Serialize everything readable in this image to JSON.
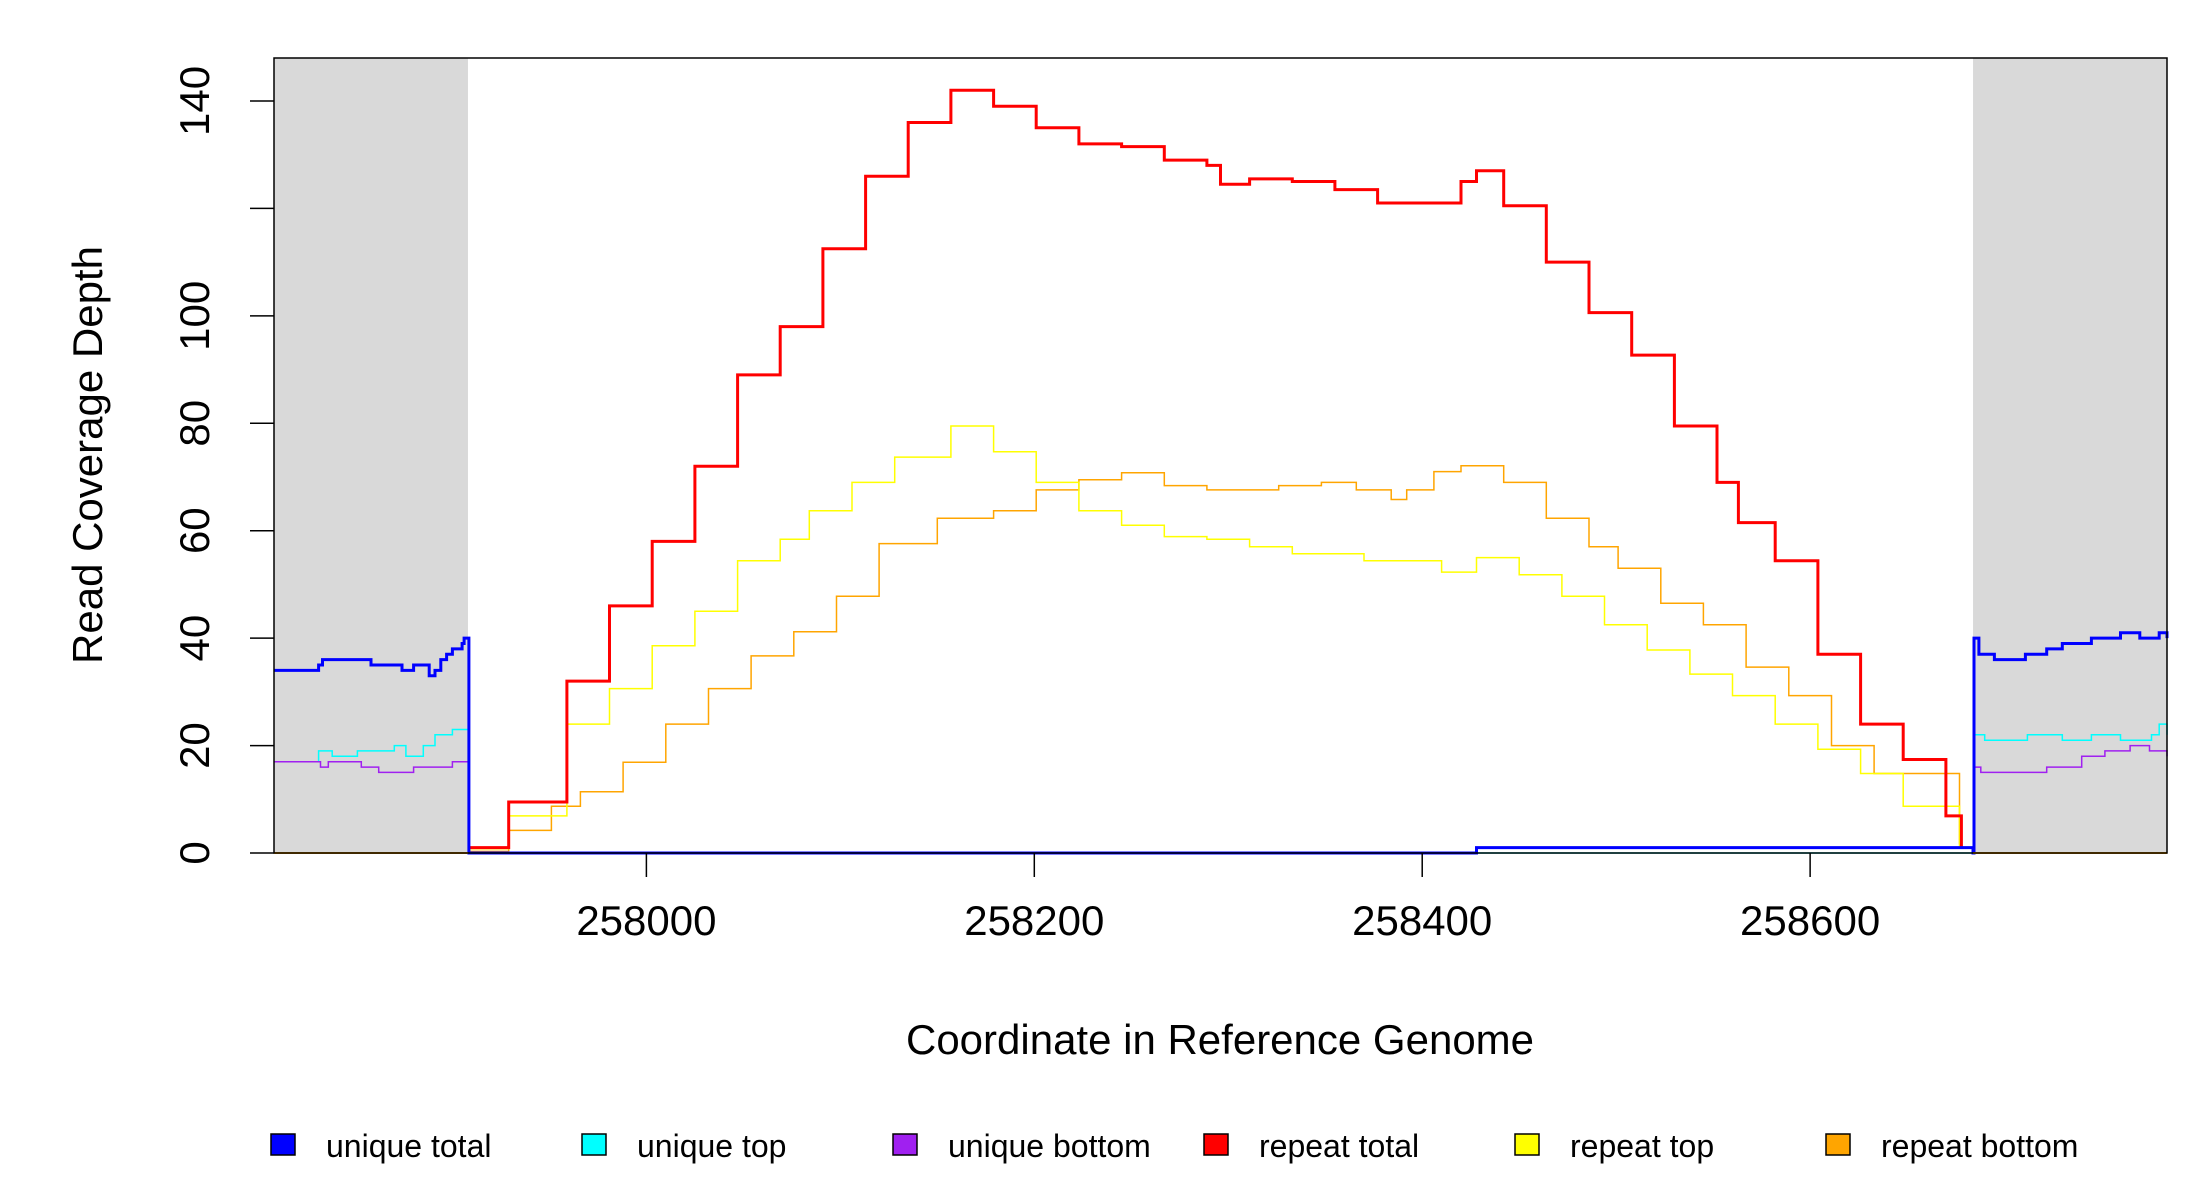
{
  "chart_data": {
    "type": "line",
    "title": "",
    "xlabel": "Coordinate in Reference Genome",
    "ylabel": "Read Coverage Depth",
    "xlim": [
      257808,
      258784
    ],
    "ylim": [
      0,
      148
    ],
    "x_ticks": [
      258000,
      258200,
      258400,
      258600
    ],
    "x_tick_labels": [
      "258000",
      "258200",
      "258400",
      "258600"
    ],
    "y_ticks": [
      0,
      20,
      40,
      60,
      80,
      100,
      120,
      140
    ],
    "y_tick_labels": [
      "0",
      "20",
      "40",
      "60",
      "80",
      "100",
      "",
      "140"
    ],
    "grid": false,
    "legend_placement": "bottom",
    "shaded_regions": [
      {
        "x": [
          257808,
          257908
        ],
        "color": "#d9d9d9"
      },
      {
        "x": [
          258684,
          258784
        ],
        "color": "#d9d9d9"
      }
    ],
    "series": [
      {
        "name": "unique total",
        "color": "#0000ff",
        "width": 3,
        "x": [
          257808,
          257831,
          257833,
          257851,
          257858,
          257862,
          257874,
          257880,
          257888,
          257891,
          257894,
          257897,
          257900,
          257902,
          257905,
          257906,
          257908,
          257908.5,
          258428,
          258678,
          258684,
          258684.5,
          258687,
          258695,
          258711,
          258722,
          258730,
          258745,
          258760,
          258770,
          258780,
          258784
        ],
        "y": [
          34,
          35,
          36,
          36,
          35,
          35,
          34,
          35,
          33,
          34,
          36,
          37,
          38,
          38,
          39,
          40,
          40,
          0,
          1,
          1,
          0,
          40,
          37,
          36,
          37,
          38,
          39,
          40,
          41,
          40,
          41,
          40
        ]
      },
      {
        "name": "unique top",
        "color": "#00ffff",
        "width": 1.5,
        "x": [
          257808,
          257831,
          257838,
          257851,
          257870,
          257876,
          257885,
          257891,
          257900,
          257908,
          257908.5,
          258678,
          258684,
          258684.5,
          258690,
          258712,
          258730,
          258745,
          258760,
          258776,
          258780,
          258784
        ],
        "y": [
          17,
          19,
          18,
          19,
          20,
          18,
          20,
          22,
          23,
          23,
          0,
          0,
          0,
          22,
          21,
          22,
          21,
          22,
          21,
          22,
          24,
          22
        ]
      },
      {
        "name": "unique bottom",
        "color": "#a020f0",
        "width": 1.5,
        "x": [
          257808,
          257832,
          257836,
          257853,
          257862,
          257880,
          257900,
          257908,
          257908.5,
          258428,
          258678,
          258684,
          258684.5,
          258688,
          258700,
          258722,
          258740,
          258752,
          258765,
          258775,
          258784
        ],
        "y": [
          17,
          16,
          17,
          16,
          15,
          16,
          17,
          17,
          0,
          1,
          1,
          0,
          16,
          15,
          15,
          16,
          18,
          19,
          20,
          19,
          18
        ]
      },
      {
        "name": "repeat total",
        "color": "#ff0000",
        "width": 3,
        "x": [
          257908,
          257929,
          257959,
          257981,
          258003,
          258025,
          258047,
          258069,
          258091,
          258113,
          258135,
          258157,
          258179,
          258201,
          258223,
          258245,
          258267,
          258289,
          258296,
          258311,
          258333,
          258355,
          258377,
          258406,
          258420,
          258428,
          258442,
          258464,
          258486,
          258508,
          258530,
          258552,
          258563,
          258582,
          258604,
          258626,
          258648,
          258670,
          258678
        ],
        "y": [
          1,
          9.5,
          32,
          46,
          58,
          72,
          89,
          98,
          112.5,
          126,
          136,
          142,
          139,
          135,
          132,
          131.5,
          129,
          128,
          124.5,
          125.5,
          125,
          123.5,
          121,
          121,
          125,
          127,
          120.5,
          110,
          100.6,
          92.7,
          79.5,
          69,
          61.5,
          54.4,
          37,
          24,
          17.4,
          6.9,
          0.8
        ]
      },
      {
        "name": "repeat top",
        "color": "#ffff00",
        "width": 1.5,
        "x": [
          257908,
          257929,
          257959,
          257981,
          258003,
          258025,
          258047,
          258069,
          258084,
          258106,
          258128,
          258157,
          258179,
          258201,
          258223,
          258245,
          258267,
          258289,
          258311,
          258333,
          258370,
          258399,
          258410,
          258428,
          258450,
          258472,
          258494,
          258516,
          258538,
          258560,
          258582,
          258604,
          258626,
          258648,
          258677
        ],
        "y": [
          0.8,
          6.9,
          24,
          30.6,
          38.6,
          45,
          54.4,
          58.4,
          63.7,
          69,
          73.7,
          79.5,
          74.7,
          69,
          63.7,
          61,
          58.9,
          58.4,
          57,
          55.7,
          54.4,
          54.4,
          52.3,
          55,
          51.8,
          47.8,
          42.5,
          37.8,
          33.3,
          29.3,
          24,
          19.3,
          14.8,
          8.7,
          0.8
        ]
      },
      {
        "name": "repeat bottom",
        "color": "#ffa500",
        "width": 1.5,
        "x": [
          257908,
          257929,
          257951,
          257966,
          257988,
          258010,
          258032,
          258054,
          258076,
          258098,
          258120,
          258150,
          258179,
          258201,
          258223,
          258245,
          258267,
          258289,
          258326,
          258348,
          258366,
          258384,
          258392,
          258406,
          258420,
          258442,
          258464,
          258486,
          258501,
          258523,
          258545,
          258567,
          258589,
          258611,
          258633,
          258677
        ],
        "y": [
          0.3,
          4.2,
          8.7,
          11.4,
          16.9,
          24,
          30.6,
          36.7,
          41.2,
          47.8,
          57.6,
          62.3,
          63.7,
          67.6,
          69.5,
          70.8,
          68.4,
          67.6,
          68.4,
          69,
          67.6,
          65.8,
          67.6,
          71,
          72.1,
          69,
          62.3,
          57,
          53,
          46.5,
          42.5,
          34.6,
          29.3,
          20,
          14.8,
          1.6
        ]
      }
    ]
  }
}
